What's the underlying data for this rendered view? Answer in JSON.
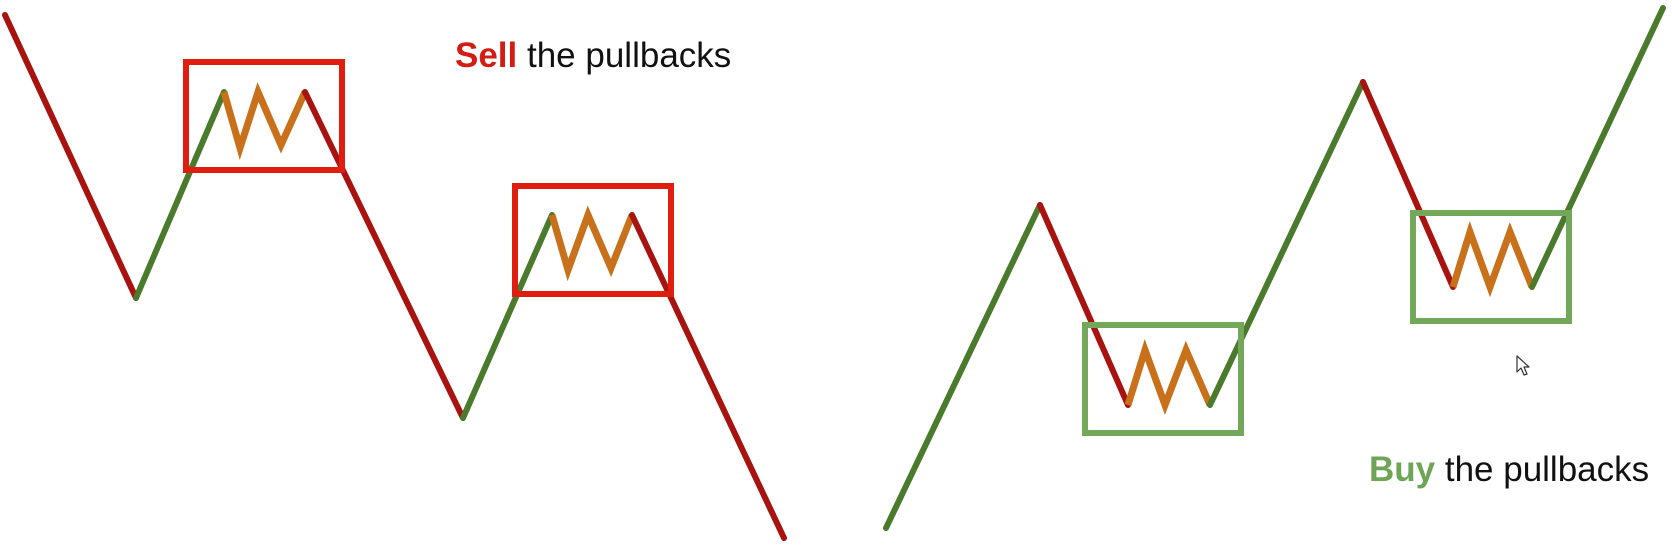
{
  "colors": {
    "down_leg": "#a8120f",
    "up_leg": "#4a7a2c",
    "pullback_zigzag": "#c8701a",
    "sell_box": "#e01e10",
    "buy_box": "#73a85a",
    "sell_keyword": "#d31c13",
    "buy_keyword": "#6ea556",
    "caption_text": "#111111"
  },
  "sell_caption": {
    "keyword": "Sell",
    "rest": " the pullbacks"
  },
  "buy_caption": {
    "keyword": "Buy",
    "rest": " the pullbacks"
  },
  "icons": {
    "pointer": "mouse-cursor-icon"
  }
}
